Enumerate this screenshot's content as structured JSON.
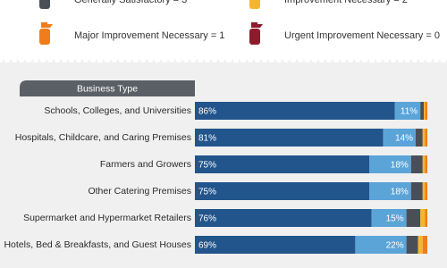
{
  "chart_data": {
    "type": "stacked-bar",
    "orientation": "horizontal",
    "category_header": "Business Type",
    "categories": [
      "Schools, Colleges, and Universities",
      "Hospitals, Childcare, and Caring Premises",
      "Farmers and Growers",
      "Other Catering Premises",
      "Supermarket and Hypermarket Retailers",
      "Hotels, Bed & Breakfasts, and Guest Houses"
    ],
    "xlim": [
      0,
      100
    ],
    "series": [
      {
        "color": "#22558c",
        "values": [
          86,
          81,
          75,
          75,
          76,
          69
        ],
        "value_labels": [
          "86%",
          "81%",
          "75%",
          "75%",
          "76%",
          "69%"
        ]
      },
      {
        "color": "#5ba4d8",
        "values": [
          11,
          14,
          18,
          18,
          15,
          22
        ],
        "value_labels": [
          "11%",
          "14%",
          "18%",
          "18%",
          "15%",
          "22%"
        ]
      },
      {
        "name": "Generally Satisfactory = 3",
        "color": "#4a4f57",
        "values": [
          1.5,
          3,
          5,
          5,
          6,
          5
        ]
      },
      {
        "name": "Improvement Necessary = 2",
        "color": "#f5b52e",
        "values": [
          0.5,
          1,
          1,
          1,
          2,
          2
        ]
      },
      {
        "name": "Major Improvement Necessary = 1",
        "color": "#f07d1c",
        "values": [
          1,
          1,
          1,
          1,
          1,
          2
        ]
      },
      {
        "name": "Urgent Improvement Necessary = 0",
        "color": "#8c1c2c",
        "values": [
          0,
          0,
          0,
          0,
          0,
          0
        ]
      }
    ]
  }
}
